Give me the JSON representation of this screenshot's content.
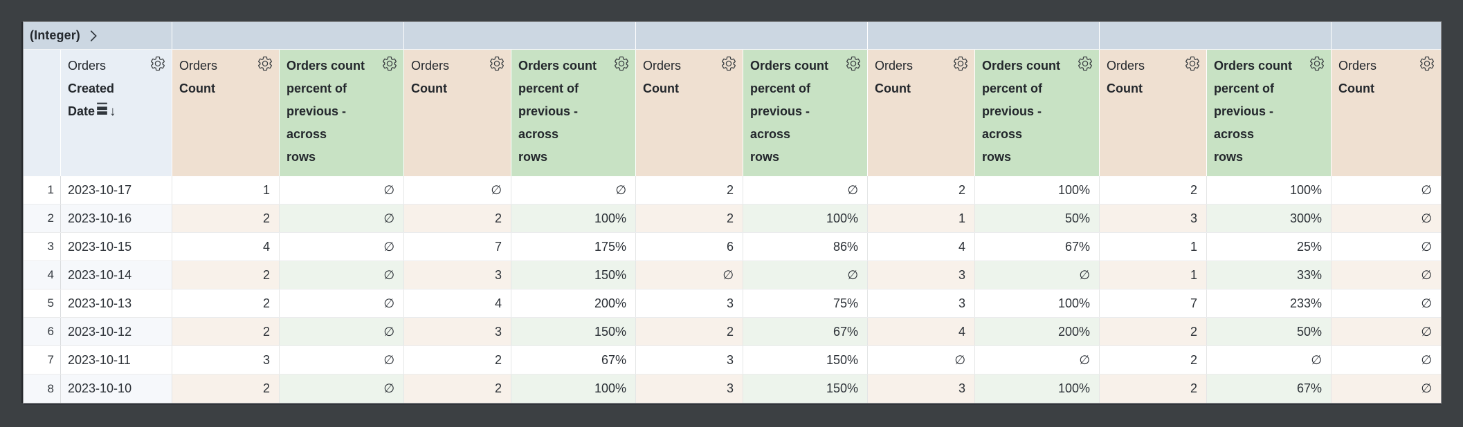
{
  "pivot_band": {
    "label": "(Integer)",
    "expand_icon": "chevron-right-icon"
  },
  "headers": {
    "dimension": {
      "view_label": "Orders",
      "field_lines": [
        "Created",
        "Date"
      ],
      "sort_icon": "rows-icon",
      "sort_arrow": "↓"
    },
    "count_measure": {
      "view_label": "Orders",
      "field_label": "Count"
    },
    "percent_measure": {
      "label": "Orders count\npercent of\nprevious -\nacross\nrows"
    },
    "settings_icon": "gear-icon"
  },
  "column_sequence": [
    "count",
    "pct",
    "count",
    "pct",
    "count",
    "pct",
    "count",
    "pct",
    "count",
    "pct",
    "count"
  ],
  "null_symbol": "∅",
  "rows": [
    {
      "index": "1",
      "date": "2023-10-17",
      "values": [
        "1",
        "∅",
        "∅",
        "∅",
        "2",
        "∅",
        "2",
        "100%",
        "2",
        "100%",
        "∅"
      ]
    },
    {
      "index": "2",
      "date": "2023-10-16",
      "values": [
        "2",
        "∅",
        "2",
        "100%",
        "2",
        "100%",
        "1",
        "50%",
        "3",
        "300%",
        "∅"
      ]
    },
    {
      "index": "3",
      "date": "2023-10-15",
      "values": [
        "4",
        "∅",
        "7",
        "175%",
        "6",
        "86%",
        "4",
        "67%",
        "1",
        "25%",
        "∅"
      ]
    },
    {
      "index": "4",
      "date": "2023-10-14",
      "values": [
        "2",
        "∅",
        "3",
        "150%",
        "∅",
        "∅",
        "3",
        "∅",
        "1",
        "33%",
        "∅"
      ]
    },
    {
      "index": "5",
      "date": "2023-10-13",
      "values": [
        "2",
        "∅",
        "4",
        "200%",
        "3",
        "75%",
        "3",
        "100%",
        "7",
        "233%",
        "∅"
      ]
    },
    {
      "index": "6",
      "date": "2023-10-12",
      "values": [
        "2",
        "∅",
        "3",
        "150%",
        "2",
        "67%",
        "4",
        "200%",
        "2",
        "50%",
        "∅"
      ]
    },
    {
      "index": "7",
      "date": "2023-10-11",
      "values": [
        "3",
        "∅",
        "2",
        "67%",
        "3",
        "150%",
        "∅",
        "∅",
        "2",
        "∅",
        "∅"
      ]
    },
    {
      "index": "8",
      "date": "2023-10-10",
      "values": [
        "2",
        "∅",
        "2",
        "100%",
        "3",
        "150%",
        "3",
        "100%",
        "2",
        "67%",
        "∅"
      ]
    }
  ],
  "colors": {
    "frame": "#3c4043",
    "pivot_band_bg": "#ccd7e2",
    "dimension_header_bg": "#e8eef5",
    "count_header_bg": "#efe0d1",
    "percent_header_bg": "#c8e2c4",
    "count_row_tint": "#f8f1ea",
    "percent_row_tint": "#edf4ec",
    "dimension_row_tint": "#f6f8fb",
    "text": "#23272c"
  }
}
